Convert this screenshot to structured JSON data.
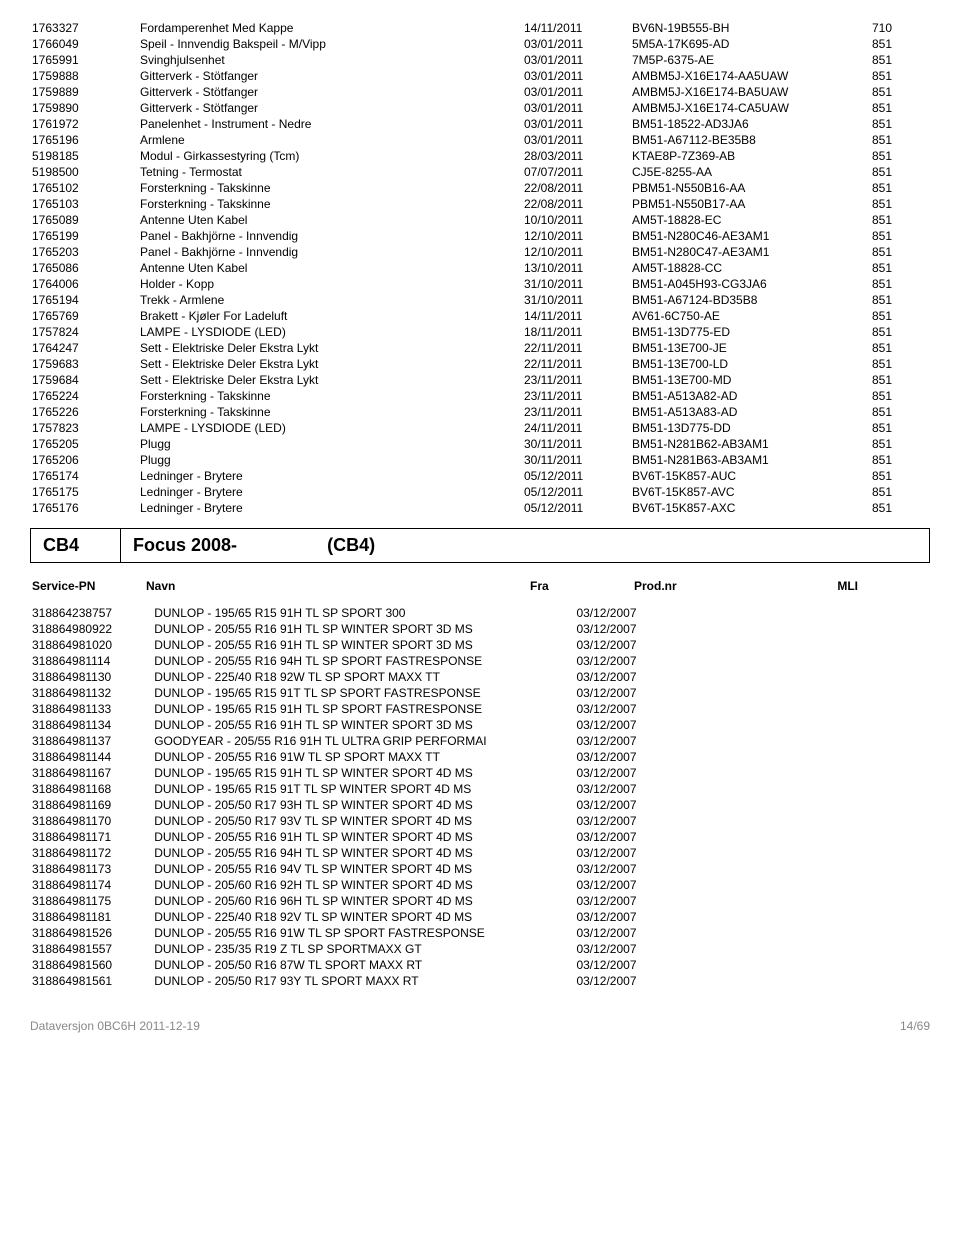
{
  "topTable": {
    "rows": [
      [
        "1763327",
        "Fordamperenhet Med Kappe",
        "14/11/2011",
        "BV6N-19B555-BH",
        "710"
      ],
      [
        "1766049",
        "Speil - Innvendig Bakspeil - M/Vipp",
        "03/01/2011",
        "5M5A-17K695-AD",
        "851"
      ],
      [
        "1765991",
        "Svinghjulsenhet",
        "03/01/2011",
        "7M5P-6375-AE",
        "851"
      ],
      [
        "1759888",
        "Gitterverk - Stötfanger",
        "03/01/2011",
        "AMBM5J-X16E174-AA5UAW",
        "851"
      ],
      [
        "1759889",
        "Gitterverk - Stötfanger",
        "03/01/2011",
        "AMBM5J-X16E174-BA5UAW",
        "851"
      ],
      [
        "1759890",
        "Gitterverk - Stötfanger",
        "03/01/2011",
        "AMBM5J-X16E174-CA5UAW",
        "851"
      ],
      [
        "1761972",
        "Panelenhet - Instrument - Nedre",
        "03/01/2011",
        "BM51-18522-AD3JA6",
        "851"
      ],
      [
        "1765196",
        "Armlene",
        "03/01/2011",
        "BM51-A67112-BE35B8",
        "851"
      ],
      [
        "5198185",
        "Modul - Girkassestyring (Tcm)",
        "28/03/2011",
        "KTAE8P-7Z369-AB",
        "851"
      ],
      [
        "5198500",
        "Tetning - Termostat",
        "07/07/2011",
        "CJ5E-8255-AA",
        "851"
      ],
      [
        "1765102",
        "Forsterkning - Takskinne",
        "22/08/2011",
        "PBM51-N550B16-AA",
        "851"
      ],
      [
        "1765103",
        "Forsterkning - Takskinne",
        "22/08/2011",
        "PBM51-N550B17-AA",
        "851"
      ],
      [
        "1765089",
        "Antenne Uten Kabel",
        "10/10/2011",
        "AM5T-18828-EC",
        "851"
      ],
      [
        "1765199",
        "Panel - Bakhjörne - Innvendig",
        "12/10/2011",
        "BM51-N280C46-AE3AM1",
        "851"
      ],
      [
        "1765203",
        "Panel - Bakhjörne - Innvendig",
        "12/10/2011",
        "BM51-N280C47-AE3AM1",
        "851"
      ],
      [
        "1765086",
        "Antenne Uten Kabel",
        "13/10/2011",
        "AM5T-18828-CC",
        "851"
      ],
      [
        "1764006",
        "Holder - Kopp",
        "31/10/2011",
        "BM51-A045H93-CG3JA6",
        "851"
      ],
      [
        "1765194",
        "Trekk - Armlene",
        "31/10/2011",
        "BM51-A67124-BD35B8",
        "851"
      ],
      [
        "1765769",
        "Brakett - Kjøler For Ladeluft",
        "14/11/2011",
        "AV61-6C750-AE",
        "851"
      ],
      [
        "1757824",
        "LAMPE - LYSDIODE (LED)",
        "18/11/2011",
        "BM51-13D775-ED",
        "851"
      ],
      [
        "1764247",
        "Sett - Elektriske Deler Ekstra Lykt",
        "22/11/2011",
        "BM51-13E700-JE",
        "851"
      ],
      [
        "1759683",
        "Sett - Elektriske Deler Ekstra Lykt",
        "22/11/2011",
        "BM51-13E700-LD",
        "851"
      ],
      [
        "1759684",
        "Sett - Elektriske Deler Ekstra Lykt",
        "23/11/2011",
        "BM51-13E700-MD",
        "851"
      ],
      [
        "1765224",
        "Forsterkning - Takskinne",
        "23/11/2011",
        "BM51-A513A82-AD",
        "851"
      ],
      [
        "1765226",
        "Forsterkning - Takskinne",
        "23/11/2011",
        "BM51-A513A83-AD",
        "851"
      ],
      [
        "1757823",
        "LAMPE - LYSDIODE (LED)",
        "24/11/2011",
        "BM51-13D775-DD",
        "851"
      ],
      [
        "1765205",
        "Plugg",
        "30/11/2011",
        "BM51-N281B62-AB3AM1",
        "851"
      ],
      [
        "1765206",
        "Plugg",
        "30/11/2011",
        "BM51-N281B63-AB3AM1",
        "851"
      ],
      [
        "1765174",
        "Ledninger - Brytere",
        "05/12/2011",
        "BV6T-15K857-AUC",
        "851"
      ],
      [
        "1765175",
        "Ledninger - Brytere",
        "05/12/2011",
        "BV6T-15K857-AVC",
        "851"
      ],
      [
        "1765176",
        "Ledninger - Brytere",
        "05/12/2011",
        "BV6T-15K857-AXC",
        "851"
      ]
    ]
  },
  "section": {
    "code": "CB4",
    "title": "Focus 2008-",
    "titleSuffix": "(CB4)"
  },
  "headers": {
    "pn": "Service-PN",
    "name": "Navn",
    "date": "Fra",
    "prodnr": "Prod.nr",
    "mli": "MLI"
  },
  "bottomTable": {
    "rows": [
      [
        "318864238757",
        "DUNLOP - 195/65 R15 91H TL SP SPORT 300",
        "03/12/2007",
        "",
        ""
      ],
      [
        "318864980922",
        "DUNLOP - 205/55 R16 91H TL SP WINTER SPORT 3D MS",
        "03/12/2007",
        "",
        ""
      ],
      [
        "318864981020",
        "DUNLOP - 205/55 R16 91H TL SP WINTER SPORT 3D MS",
        "03/12/2007",
        "",
        ""
      ],
      [
        "318864981114",
        "DUNLOP - 205/55 R16 94H TL SP SPORT FASTRESPONSE",
        "03/12/2007",
        "",
        ""
      ],
      [
        "318864981130",
        "DUNLOP - 225/40 R18 92W TL SP SPORT MAXX TT",
        "03/12/2007",
        "",
        ""
      ],
      [
        "318864981132",
        "DUNLOP - 195/65 R15 91T TL SP SPORT FASTRESPONSE",
        "03/12/2007",
        "",
        ""
      ],
      [
        "318864981133",
        "DUNLOP - 195/65 R15 91H TL SP SPORT FASTRESPONSE",
        "03/12/2007",
        "",
        ""
      ],
      [
        "318864981134",
        "DUNLOP - 205/55 R16 91H TL SP WINTER SPORT 3D MS",
        "03/12/2007",
        "",
        ""
      ],
      [
        "318864981137",
        "GOODYEAR - 205/55 R16 91H TL ULTRA GRIP PERFORMAI",
        "03/12/2007",
        "",
        ""
      ],
      [
        "318864981144",
        "DUNLOP - 205/55 R16 91W TL SP SPORT MAXX TT",
        "03/12/2007",
        "",
        ""
      ],
      [
        "318864981167",
        "DUNLOP - 195/65 R15 91H TL SP WINTER SPORT 4D MS",
        "03/12/2007",
        "",
        ""
      ],
      [
        "318864981168",
        "DUNLOP - 195/65 R15 91T TL SP WINTER SPORT 4D MS",
        "03/12/2007",
        "",
        ""
      ],
      [
        "318864981169",
        "DUNLOP - 205/50 R17 93H TL SP WINTER SPORT 4D MS",
        "03/12/2007",
        "",
        ""
      ],
      [
        "318864981170",
        "DUNLOP - 205/50 R17 93V TL SP WINTER SPORT 4D MS",
        "03/12/2007",
        "",
        ""
      ],
      [
        "318864981171",
        "DUNLOP - 205/55 R16 91H TL SP WINTER SPORT 4D MS",
        "03/12/2007",
        "",
        ""
      ],
      [
        "318864981172",
        "DUNLOP - 205/55 R16 94H TL SP WINTER SPORT 4D MS",
        "03/12/2007",
        "",
        ""
      ],
      [
        "318864981173",
        "DUNLOP - 205/55 R16 94V TL SP WINTER SPORT 4D MS",
        "03/12/2007",
        "",
        ""
      ],
      [
        "318864981174",
        "DUNLOP - 205/60 R16 92H TL SP WINTER SPORT 4D MS",
        "03/12/2007",
        "",
        ""
      ],
      [
        "318864981175",
        "DUNLOP - 205/60 R16 96H TL SP WINTER SPORT 4D MS",
        "03/12/2007",
        "",
        ""
      ],
      [
        "318864981181",
        "DUNLOP - 225/40 R18 92V TL SP WINTER SPORT 4D MS",
        "03/12/2007",
        "",
        ""
      ],
      [
        "318864981526",
        "DUNLOP - 205/55 R16 91W TL SP SPORT FASTRESPONSE",
        "03/12/2007",
        "",
        ""
      ],
      [
        "318864981557",
        "DUNLOP - 235/35 R19 Z TL SP SPORTMAXX GT",
        "03/12/2007",
        "",
        ""
      ],
      [
        "318864981560",
        "DUNLOP - 205/50 R16 87W TL SPORT MAXX RT",
        "03/12/2007",
        "",
        ""
      ],
      [
        "318864981561",
        "DUNLOP - 205/50 R17 93Y TL SPORT MAXX RT",
        "03/12/2007",
        "",
        ""
      ]
    ]
  },
  "footer": {
    "left": "Dataversjon 0BC6H 2011-12-19",
    "right": "14/69"
  }
}
